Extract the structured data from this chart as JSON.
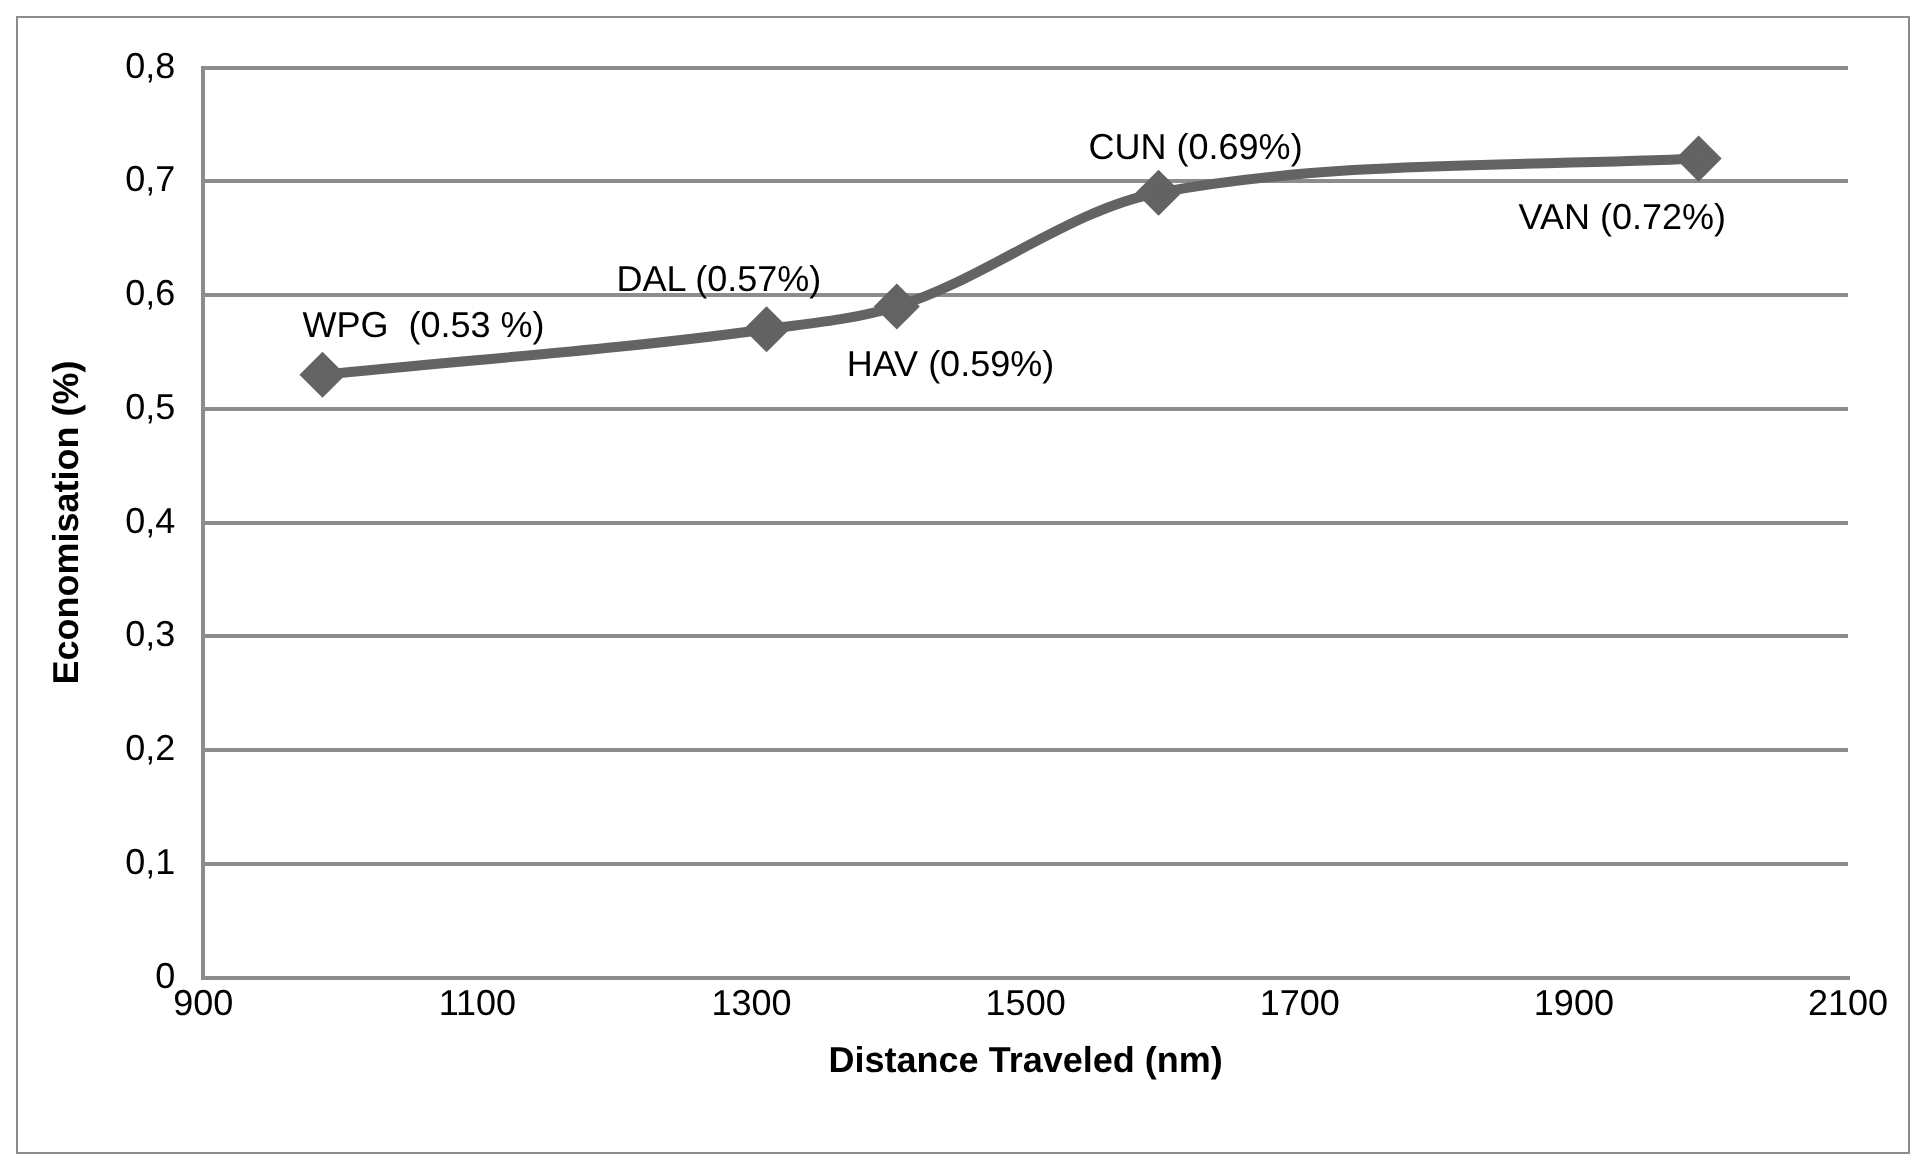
{
  "chart_data": {
    "type": "line",
    "xlabel": "Distance Traveled (nm)",
    "ylabel": "Economisation (%)",
    "x": [
      987,
      1311,
      1406,
      1597,
      1991
    ],
    "series": [
      {
        "color": "#636363",
        "values": [
          0.53,
          0.57,
          0.59,
          0.69,
          0.72
        ]
      }
    ],
    "xlim": [
      900,
      2100
    ],
    "xticks": [
      900,
      1100,
      1300,
      1500,
      1700,
      1900,
      2100
    ],
    "ylim": [
      0,
      0.8
    ],
    "yticks": [
      {
        "value": 0,
        "label": "0"
      },
      {
        "value": 0.1,
        "label": "0,1"
      },
      {
        "value": 0.2,
        "label": "0,2"
      },
      {
        "value": 0.3,
        "label": "0,3"
      },
      {
        "value": 0.4,
        "label": "0,4"
      },
      {
        "value": 0.5,
        "label": "0,5"
      },
      {
        "value": 0.6,
        "label": "0,6"
      },
      {
        "value": 0.7,
        "label": "0,7"
      },
      {
        "value": 0.8,
        "label": "0,8"
      }
    ],
    "grid": "y",
    "legend": false,
    "marker": "diamond",
    "line_style": "solid",
    "annotations": [
      {
        "text": "WPG  (0.53 %)",
        "x": 987,
        "y": 0.53
      },
      {
        "text": "DAL (0.57%)",
        "x": 1311,
        "y": 0.57
      },
      {
        "text": "HAV (0.59%)",
        "x": 1406,
        "y": 0.59
      },
      {
        "text": "CUN (0.69%)",
        "x": 1597,
        "y": 0.69
      },
      {
        "text": "VAN (0.72%)",
        "x": 1991,
        "y": 0.72
      }
    ]
  }
}
